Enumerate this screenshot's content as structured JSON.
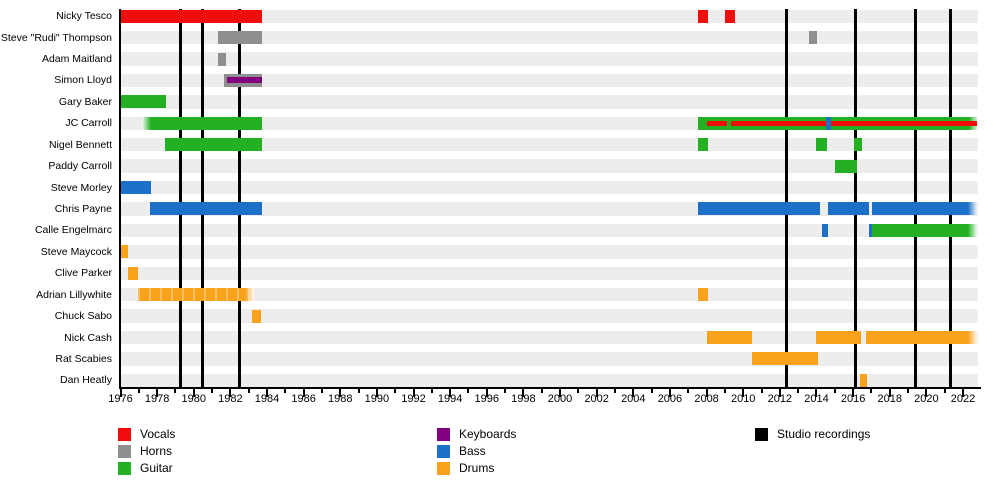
{
  "chart_data": {
    "type": "timeline",
    "title": "",
    "x_axis": {
      "start": 1976,
      "end": 2022,
      "minor_tick_step": 1,
      "label_step": 2,
      "tick_labels": [
        1976,
        1978,
        1980,
        1982,
        1984,
        1986,
        1988,
        1990,
        1992,
        1994,
        1996,
        1998,
        2000,
        2002,
        2004,
        2006,
        2008,
        2010,
        2012,
        2014,
        2016,
        2018,
        2020,
        2022
      ]
    },
    "colors": {
      "vocals": "#f20d0d",
      "horns": "#8f8f8f",
      "guitar": "#23b123",
      "keyboards": "#800080",
      "bass": "#1c70c8",
      "drums": "#f9a21c",
      "recordings": "#000000",
      "row_band": "#ededed",
      "axis": "#000000"
    },
    "studio_recordings": [
      1979.25,
      1980.45,
      1982.5,
      2012.35,
      2016.15,
      2019.4,
      2021.3
    ],
    "members": [
      {
        "name": "Nicky Tesco",
        "segments": [
          {
            "role": "vocals",
            "from": 1976.0,
            "to": 1983.75
          },
          {
            "role": "vocals",
            "from": 2007.55,
            "to": 2008.1
          },
          {
            "role": "vocals",
            "from": 2009.0,
            "to": 2009.55
          }
        ]
      },
      {
        "name": "Steve \"Rudi\" Thompson",
        "segments": [
          {
            "role": "horns",
            "from": 1981.35,
            "to": 1983.75
          },
          {
            "role": "horns",
            "from": 2013.6,
            "to": 2014.05
          }
        ]
      },
      {
        "name": "Adam Maitland",
        "segments": [
          {
            "role": "horns",
            "from": 1981.3,
            "to": 1981.75
          }
        ]
      },
      {
        "name": "Simon Lloyd",
        "segments": [
          {
            "role": "horns",
            "from": 1981.65,
            "to": 1983.75
          }
        ],
        "overlays": [
          {
            "role": "keyboards",
            "from": 1981.8,
            "to": 1983.75,
            "style": "stripe",
            "h": 6
          }
        ]
      },
      {
        "name": "Gary Baker",
        "segments": [
          {
            "role": "guitar",
            "from": 1976.0,
            "to": 1978.5
          }
        ]
      },
      {
        "name": "JC Carroll",
        "segments": [
          {
            "role": "guitar",
            "from": 1977.15,
            "to": 1983.75,
            "fade_left": true
          },
          {
            "role": "guitar",
            "from": 2007.55,
            "to": 2022.8,
            "fade_right": true
          }
        ],
        "overlays": [
          {
            "role": "vocals",
            "from": 2008.05,
            "to": 2009.1,
            "style": "stripe",
            "h": 5
          },
          {
            "role": "vocals",
            "from": 2009.35,
            "to": 2022.75,
            "style": "stripe",
            "h": 5
          },
          {
            "role": "bass",
            "from": 2014.5,
            "to": 2014.77,
            "style": "full"
          }
        ]
      },
      {
        "name": "Nigel Bennett",
        "segments": [
          {
            "role": "guitar",
            "from": 1978.45,
            "to": 1983.75
          },
          {
            "role": "guitar",
            "from": 2007.55,
            "to": 2008.1
          },
          {
            "role": "guitar",
            "from": 2014.0,
            "to": 2014.6
          },
          {
            "role": "guitar",
            "from": 2016.05,
            "to": 2016.5
          }
        ]
      },
      {
        "name": "Paddy Carroll",
        "segments": [
          {
            "role": "guitar",
            "from": 2015.0,
            "to": 2016.2
          }
        ]
      },
      {
        "name": "Steve Morley",
        "segments": [
          {
            "role": "bass",
            "from": 1976.0,
            "to": 1977.65
          }
        ]
      },
      {
        "name": "Chris Payne",
        "segments": [
          {
            "role": "bass",
            "from": 1977.6,
            "to": 1983.75
          },
          {
            "role": "bass",
            "from": 2007.55,
            "to": 2014.2
          },
          {
            "role": "bass",
            "from": 2014.65,
            "to": 2016.85
          },
          {
            "role": "bass",
            "from": 2017.05,
            "to": 2022.75,
            "fade_right": true
          }
        ]
      },
      {
        "name": "Calle Engelmarc",
        "segments": [
          {
            "role": "bass",
            "from": 2014.3,
            "to": 2014.65
          },
          {
            "role": "bass",
            "from": 2016.85,
            "to": 2017.05
          },
          {
            "role": "guitar",
            "from": 2017.05,
            "to": 2022.75,
            "fade_right": true
          }
        ]
      },
      {
        "name": "Steve Maycock",
        "segments": [
          {
            "role": "drums",
            "from": 1976.0,
            "to": 1976.4
          }
        ]
      },
      {
        "name": "Clive Parker",
        "segments": [
          {
            "role": "drums",
            "from": 1976.4,
            "to": 1976.95
          }
        ]
      },
      {
        "name": "Adrian Lillywhite",
        "segments": [
          {
            "role": "drums",
            "from": 1976.95,
            "to": 1983.3,
            "textured": true,
            "fade_right": true
          },
          {
            "role": "drums",
            "from": 2007.55,
            "to": 2008.1
          }
        ]
      },
      {
        "name": "Chuck Sabo",
        "segments": [
          {
            "role": "drums",
            "from": 1983.2,
            "to": 1983.65
          }
        ]
      },
      {
        "name": "Nick Cash",
        "segments": [
          {
            "role": "drums",
            "from": 2008.0,
            "to": 2010.5
          },
          {
            "role": "drums",
            "from": 2014.0,
            "to": 2016.45
          },
          {
            "role": "drums",
            "from": 2016.7,
            "to": 2022.75,
            "fade_right": true
          }
        ]
      },
      {
        "name": "Rat Scabies",
        "segments": [
          {
            "role": "drums",
            "from": 2010.5,
            "to": 2014.1
          }
        ]
      },
      {
        "name": "Dan Heatly",
        "segments": [
          {
            "role": "drums",
            "from": 2016.4,
            "to": 2016.75
          }
        ]
      }
    ],
    "legend": {
      "columns": [
        {
          "items": [
            {
              "label": "Vocals",
              "role": "vocals"
            },
            {
              "label": "Horns",
              "role": "horns"
            },
            {
              "label": "Guitar",
              "role": "guitar"
            }
          ]
        },
        {
          "items": [
            {
              "label": "Keyboards",
              "role": "keyboards"
            },
            {
              "label": "Bass",
              "role": "bass"
            },
            {
              "label": "Drums",
              "role": "drums"
            }
          ]
        },
        {
          "items": [
            {
              "label": "Studio recordings",
              "role": "recordings"
            }
          ]
        }
      ],
      "legend_position": "bottom"
    }
  }
}
